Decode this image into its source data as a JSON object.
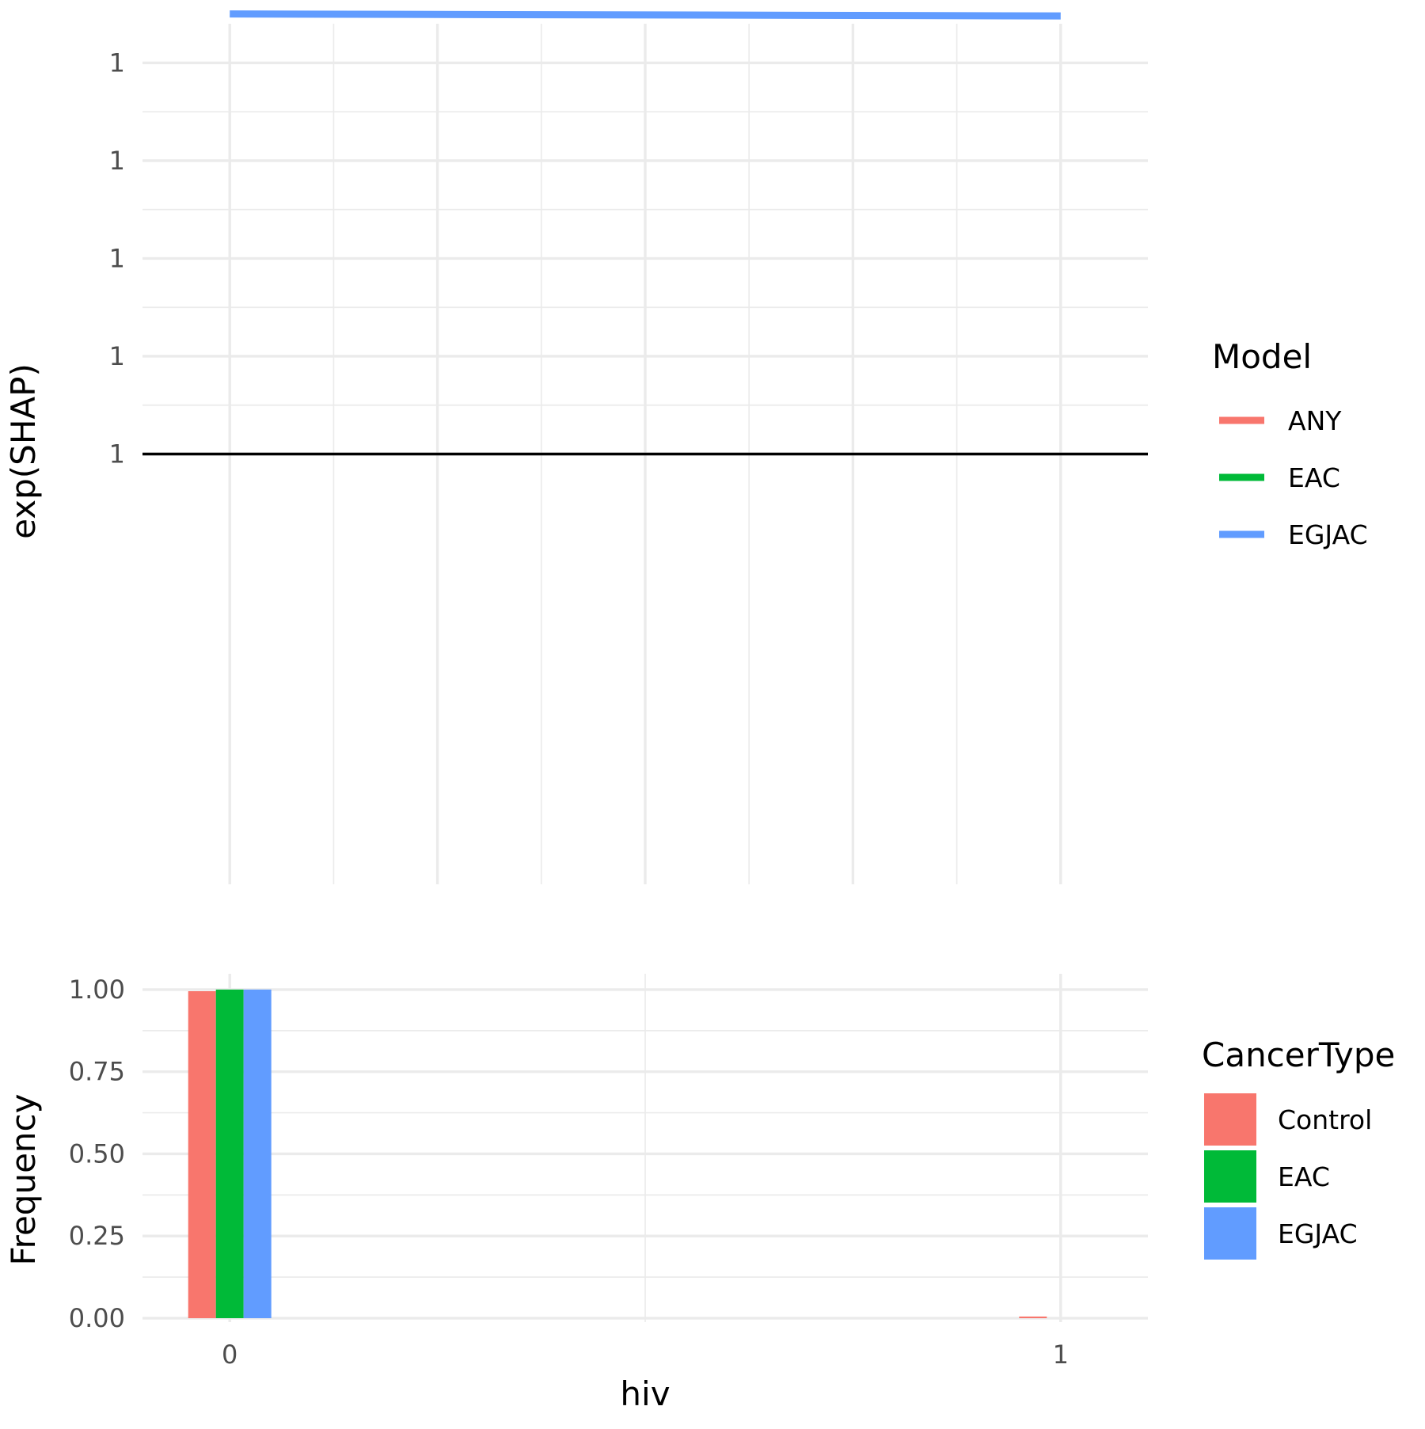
{
  "chart_data": [
    {
      "type": "line",
      "ylabel": "exp(SHAP)",
      "xlim": [
        -0.105,
        1.105
      ],
      "ylim": [
        0.99978,
        1.00022
      ],
      "y_ticks": [
        1.0,
        1.00005,
        1.0001,
        1.00015,
        1.0002
      ],
      "y_tick_labels": [
        "1",
        "1",
        "1",
        "1",
        "1"
      ],
      "x_ticks": [
        0,
        0.125,
        0.25,
        0.375,
        0.5,
        0.625,
        0.75,
        0.875,
        1
      ],
      "grid": true,
      "reference_line": 1.0,
      "legend": {
        "title": "Model",
        "position": "right",
        "entries": [
          {
            "name": "ANY",
            "color": "#F8766D"
          },
          {
            "name": "EAC",
            "color": "#00BA38"
          },
          {
            "name": "EGJAC",
            "color": "#619CFF"
          }
        ]
      },
      "series": [
        {
          "name": "EGJAC",
          "color": "#619CFF",
          "x": [
            0,
            1
          ],
          "y": [
            1.000225,
            1.000224
          ]
        }
      ]
    },
    {
      "type": "bar",
      "xlabel": "hiv",
      "ylabel": "Frequency",
      "categories": [
        "0",
        "1"
      ],
      "x_positions": [
        0,
        1
      ],
      "xlim": [
        -0.105,
        1.105
      ],
      "ylim": [
        -0.012,
        1.048
      ],
      "y_ticks": [
        0.0,
        0.25,
        0.5,
        0.75,
        1.0
      ],
      "y_tick_labels": [
        "0.00",
        "0.25",
        "0.50",
        "0.75",
        "1.00"
      ],
      "grid": true,
      "legend": {
        "title": "CancerType",
        "position": "right",
        "entries": [
          {
            "name": "Control",
            "color": "#F8766D"
          },
          {
            "name": "EAC",
            "color": "#00BA38"
          },
          {
            "name": "EGJAC",
            "color": "#619CFF"
          }
        ]
      },
      "series": [
        {
          "name": "Control",
          "color": "#F8766D",
          "values": [
            0.995,
            0.005
          ]
        },
        {
          "name": "EAC",
          "color": "#00BA38",
          "values": [
            1.0,
            0.0
          ]
        },
        {
          "name": "EGJAC",
          "color": "#619CFF",
          "values": [
            1.0,
            0.0
          ]
        }
      ]
    }
  ]
}
